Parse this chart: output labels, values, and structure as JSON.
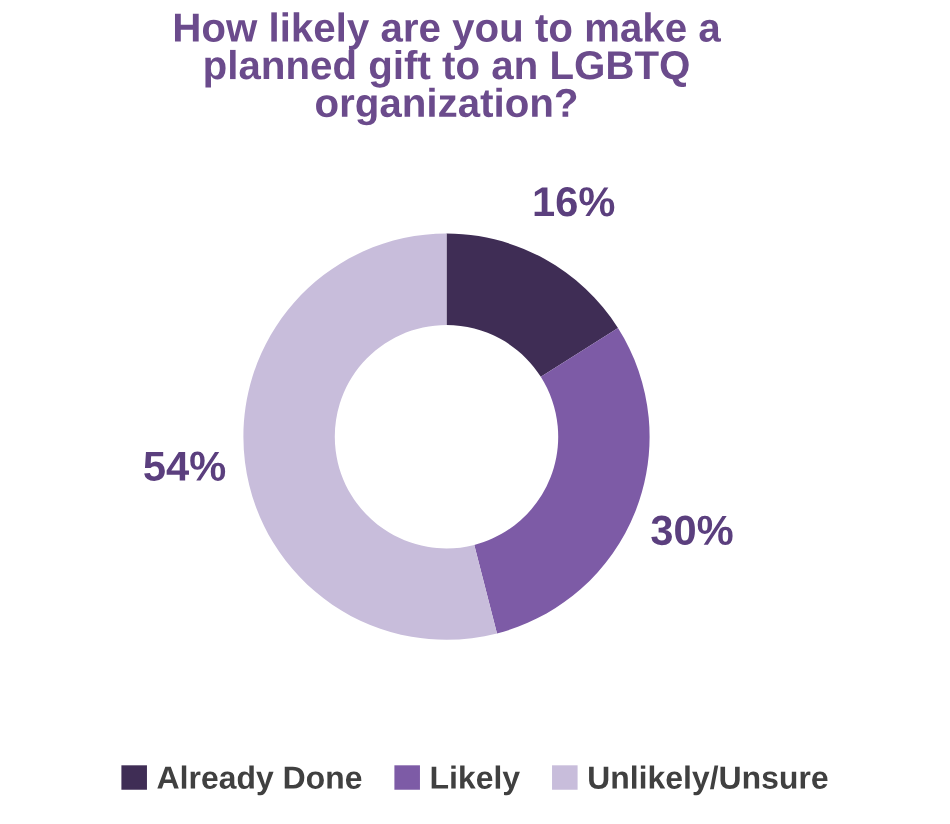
{
  "chart_data": {
    "type": "donut",
    "title": "How likely are you to make a\nplanned gift to an LGBTQ\norganization?",
    "categories": [
      "Already Done",
      "Likely",
      "Unlikely/Unsure"
    ],
    "values": [
      16,
      30,
      54
    ],
    "colors": [
      "#3f2d55",
      "#7d5ba6",
      "#c8bddb"
    ],
    "value_labels": [
      "16%",
      "30%",
      "54%"
    ],
    "legend": "bottom"
  }
}
